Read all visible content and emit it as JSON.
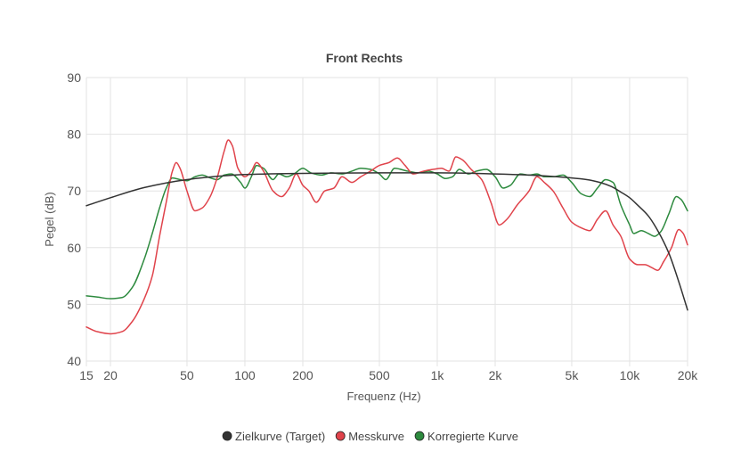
{
  "chart_data": {
    "type": "line",
    "title": "Front Rechts",
    "xlabel": "Frequenz (Hz)",
    "ylabel": "Pegel (dB)",
    "xscale": "log",
    "xlim": [
      15,
      20000
    ],
    "ylim": [
      40,
      90
    ],
    "xticks": [
      {
        "value": 15,
        "label": "15"
      },
      {
        "value": 20,
        "label": "20"
      },
      {
        "value": 50,
        "label": "50"
      },
      {
        "value": 100,
        "label": "100"
      },
      {
        "value": 200,
        "label": "200"
      },
      {
        "value": 500,
        "label": "500"
      },
      {
        "value": 1000,
        "label": "1k"
      },
      {
        "value": 2000,
        "label": "2k"
      },
      {
        "value": 5000,
        "label": "5k"
      },
      {
        "value": 10000,
        "label": "10k"
      },
      {
        "value": 20000,
        "label": "20k"
      }
    ],
    "yticks": [
      {
        "value": 40,
        "label": "40"
      },
      {
        "value": 50,
        "label": "50"
      },
      {
        "value": 60,
        "label": "60"
      },
      {
        "value": 70,
        "label": "70"
      },
      {
        "value": 80,
        "label": "80"
      },
      {
        "value": 90,
        "label": "90"
      }
    ],
    "grid": true,
    "legend_position": "bottom",
    "series": [
      {
        "name": "Zielkurve (Target)",
        "color": "#333333",
        "points": [
          [
            15,
            67.4
          ],
          [
            20,
            68.8
          ],
          [
            30,
            70.6
          ],
          [
            50,
            72.0
          ],
          [
            80,
            72.7
          ],
          [
            100,
            72.9
          ],
          [
            200,
            73.1
          ],
          [
            500,
            73.2
          ],
          [
            1000,
            73.2
          ],
          [
            2000,
            73.0
          ],
          [
            3000,
            72.8
          ],
          [
            5000,
            72.3
          ],
          [
            6000,
            72.0
          ],
          [
            7000,
            71.5
          ],
          [
            8000,
            70.8
          ],
          [
            9000,
            69.8
          ],
          [
            10000,
            68.8
          ],
          [
            11000,
            67.5
          ],
          [
            12500,
            65.6
          ],
          [
            14000,
            63.0
          ],
          [
            16000,
            59.0
          ],
          [
            18000,
            54.0
          ],
          [
            20000,
            49.0
          ]
        ]
      },
      {
        "name": "Messkurve",
        "color": "#e0434b",
        "points": [
          [
            15,
            46.0
          ],
          [
            17,
            45.2
          ],
          [
            20,
            44.8
          ],
          [
            23,
            45.2
          ],
          [
            26,
            47.0
          ],
          [
            30,
            51.0
          ],
          [
            33,
            55.0
          ],
          [
            36,
            62.0
          ],
          [
            39,
            68.0
          ],
          [
            42,
            73.5
          ],
          [
            44,
            75.0
          ],
          [
            46,
            74.0
          ],
          [
            50,
            70.0
          ],
          [
            55,
            66.5
          ],
          [
            60,
            67.0
          ],
          [
            66,
            69.0
          ],
          [
            72,
            72.5
          ],
          [
            78,
            77.0
          ],
          [
            82,
            79.0
          ],
          [
            86,
            78.0
          ],
          [
            92,
            74.0
          ],
          [
            100,
            72.5
          ],
          [
            108,
            73.5
          ],
          [
            115,
            75.0
          ],
          [
            125,
            73.5
          ],
          [
            140,
            70.0
          ],
          [
            155,
            69.0
          ],
          [
            170,
            70.5
          ],
          [
            185,
            73.0
          ],
          [
            200,
            71.0
          ],
          [
            215,
            70.0
          ],
          [
            235,
            68.0
          ],
          [
            260,
            70.0
          ],
          [
            290,
            70.5
          ],
          [
            320,
            72.5
          ],
          [
            360,
            71.5
          ],
          [
            400,
            72.5
          ],
          [
            450,
            73.5
          ],
          [
            500,
            74.5
          ],
          [
            560,
            75.0
          ],
          [
            620,
            75.8
          ],
          [
            680,
            74.5
          ],
          [
            750,
            73.0
          ],
          [
            850,
            73.5
          ],
          [
            950,
            73.8
          ],
          [
            1050,
            74.0
          ],
          [
            1150,
            73.5
          ],
          [
            1250,
            76.0
          ],
          [
            1350,
            75.5
          ],
          [
            1500,
            73.8
          ],
          [
            1700,
            72.0
          ],
          [
            1900,
            68.0
          ],
          [
            2100,
            64.0
          ],
          [
            2300,
            65.0
          ],
          [
            2600,
            67.5
          ],
          [
            3000,
            70.0
          ],
          [
            3300,
            72.5
          ],
          [
            3600,
            71.5
          ],
          [
            4000,
            70.0
          ],
          [
            4500,
            67.0
          ],
          [
            5000,
            64.5
          ],
          [
            5600,
            63.5
          ],
          [
            6200,
            63.0
          ],
          [
            6800,
            65.0
          ],
          [
            7500,
            66.5
          ],
          [
            8200,
            64.0
          ],
          [
            9000,
            62.0
          ],
          [
            10000,
            58.0
          ],
          [
            11000,
            57.0
          ],
          [
            12000,
            57.0
          ],
          [
            13000,
            56.5
          ],
          [
            14000,
            56.0
          ],
          [
            15000,
            57.5
          ],
          [
            16500,
            60.0
          ],
          [
            18000,
            63.2
          ],
          [
            19000,
            62.5
          ],
          [
            20000,
            60.5
          ]
        ]
      },
      {
        "name": "Korregierte Kurve",
        "color": "#2d8a3e",
        "points": [
          [
            15,
            51.5
          ],
          [
            17,
            51.3
          ],
          [
            20,
            51.0
          ],
          [
            23,
            51.2
          ],
          [
            26,
            53.0
          ],
          [
            30,
            58.0
          ],
          [
            33,
            62.5
          ],
          [
            36,
            67.0
          ],
          [
            39,
            70.5
          ],
          [
            42,
            72.3
          ],
          [
            46,
            72.0
          ],
          [
            50,
            71.8
          ],
          [
            55,
            72.5
          ],
          [
            60,
            72.8
          ],
          [
            66,
            72.3
          ],
          [
            72,
            72.0
          ],
          [
            78,
            72.8
          ],
          [
            85,
            73.0
          ],
          [
            95,
            71.5
          ],
          [
            100,
            70.5
          ],
          [
            108,
            72.5
          ],
          [
            115,
            74.5
          ],
          [
            125,
            74.0
          ],
          [
            140,
            72.0
          ],
          [
            150,
            73.0
          ],
          [
            165,
            72.5
          ],
          [
            180,
            73.0
          ],
          [
            200,
            74.0
          ],
          [
            220,
            73.2
          ],
          [
            250,
            72.8
          ],
          [
            280,
            73.2
          ],
          [
            320,
            73.0
          ],
          [
            360,
            73.5
          ],
          [
            400,
            74.0
          ],
          [
            450,
            73.8
          ],
          [
            500,
            73.0
          ],
          [
            540,
            72.0
          ],
          [
            600,
            74.0
          ],
          [
            700,
            73.5
          ],
          [
            800,
            73.2
          ],
          [
            900,
            73.5
          ],
          [
            1000,
            73.0
          ],
          [
            1100,
            72.2
          ],
          [
            1200,
            72.5
          ],
          [
            1300,
            73.8
          ],
          [
            1450,
            73.0
          ],
          [
            1600,
            73.5
          ],
          [
            1800,
            73.8
          ],
          [
            2000,
            72.5
          ],
          [
            2200,
            70.5
          ],
          [
            2400,
            71.0
          ],
          [
            2700,
            73.0
          ],
          [
            3000,
            72.8
          ],
          [
            3300,
            73.0
          ],
          [
            3600,
            72.5
          ],
          [
            4000,
            72.5
          ],
          [
            4500,
            72.8
          ],
          [
            5000,
            71.5
          ],
          [
            5600,
            69.5
          ],
          [
            6200,
            69.0
          ],
          [
            6800,
            70.5
          ],
          [
            7500,
            72.0
          ],
          [
            8200,
            71.5
          ],
          [
            9000,
            67.5
          ],
          [
            10000,
            64.0
          ],
          [
            10500,
            62.5
          ],
          [
            11500,
            63.0
          ],
          [
            12500,
            62.5
          ],
          [
            13500,
            62.0
          ],
          [
            14500,
            62.8
          ],
          [
            16000,
            66.0
          ],
          [
            17500,
            69.0
          ],
          [
            18500,
            68.5
          ],
          [
            20000,
            66.5
          ]
        ]
      }
    ]
  }
}
